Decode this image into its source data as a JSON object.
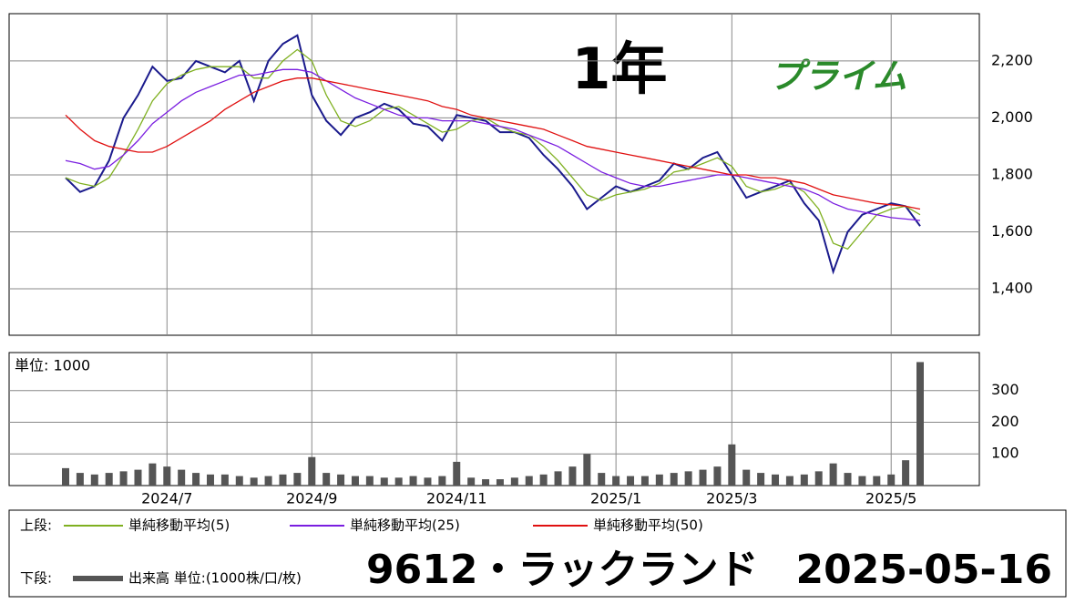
{
  "chart_data": [
    {
      "type": "line",
      "title": "9612・ラックランド",
      "date": "2025-05-16",
      "period_label": "1年",
      "market_label": "プライム",
      "legend_prefix": "上段:",
      "categories": [
        null,
        null,
        null,
        null,
        null,
        null,
        null,
        null,
        null,
        null,
        null,
        null,
        null,
        null,
        null,
        null,
        null,
        null,
        null,
        null,
        null,
        null,
        null,
        null,
        null,
        null,
        null,
        null,
        null,
        null,
        null,
        null,
        null,
        null,
        null,
        null,
        null,
        null,
        null,
        null,
        null,
        null,
        null,
        null,
        null,
        null,
        null,
        null,
        null,
        null,
        null,
        null,
        null,
        null,
        null,
        null,
        null,
        null,
        null,
        null
      ],
      "series": [
        {
          "color": "#1a1a8c",
          "values": [
            1790,
            1740,
            1760,
            1850,
            2000,
            2080,
            2180,
            2130,
            2140,
            2200,
            2180,
            2160,
            2200,
            2060,
            2200,
            2260,
            2290,
            2080,
            1990,
            1940,
            2000,
            2020,
            2050,
            2030,
            1980,
            1970,
            1920,
            2010,
            2000,
            1990,
            1950,
            1950,
            1930,
            1870,
            1820,
            1760,
            1680,
            1720,
            1760,
            1740,
            1760,
            1780,
            1840,
            1820,
            1860,
            1880,
            1800,
            1720,
            1740,
            1760,
            1780,
            1700,
            1640,
            1460,
            1600,
            1660,
            1680,
            1700,
            1690,
            1620
          ]
        },
        {
          "name": "単純移動平均(5)",
          "color": "#7fb020",
          "values": [
            1790,
            1770,
            1760,
            1790,
            1870,
            1960,
            2060,
            2120,
            2150,
            2170,
            2180,
            2180,
            2180,
            2140,
            2140,
            2200,
            2240,
            2200,
            2080,
            1990,
            1970,
            1990,
            2030,
            2040,
            2010,
            1980,
            1950,
            1960,
            1990,
            2000,
            1970,
            1950,
            1940,
            1900,
            1850,
            1790,
            1730,
            1710,
            1730,
            1740,
            1750,
            1770,
            1810,
            1820,
            1840,
            1860,
            1830,
            1760,
            1740,
            1750,
            1770,
            1740,
            1680,
            1560,
            1540,
            1600,
            1660,
            1680,
            1690,
            1660
          ]
        },
        {
          "name": "単純移動平均(25)",
          "color": "#7a1ee0",
          "values": [
            1850,
            1840,
            1820,
            1830,
            1870,
            1920,
            1980,
            2020,
            2060,
            2090,
            2110,
            2130,
            2150,
            2150,
            2160,
            2170,
            2170,
            2160,
            2130,
            2100,
            2070,
            2050,
            2030,
            2010,
            2000,
            2000,
            1990,
            1990,
            1990,
            1980,
            1970,
            1960,
            1940,
            1920,
            1900,
            1870,
            1840,
            1810,
            1790,
            1770,
            1760,
            1760,
            1770,
            1780,
            1790,
            1800,
            1800,
            1790,
            1780,
            1770,
            1760,
            1750,
            1730,
            1700,
            1680,
            1670,
            1660,
            1650,
            1645,
            1640
          ]
        },
        {
          "name": "単純移動平均(50)",
          "color": "#e01010",
          "values": [
            2010,
            1960,
            1920,
            1900,
            1890,
            1880,
            1880,
            1900,
            1930,
            1960,
            1990,
            2030,
            2060,
            2090,
            2110,
            2130,
            2140,
            2140,
            2130,
            2120,
            2110,
            2100,
            2090,
            2080,
            2070,
            2060,
            2040,
            2030,
            2010,
            2000,
            1990,
            1980,
            1970,
            1960,
            1940,
            1920,
            1900,
            1890,
            1880,
            1870,
            1860,
            1850,
            1840,
            1830,
            1820,
            1810,
            1800,
            1800,
            1790,
            1790,
            1780,
            1770,
            1750,
            1730,
            1720,
            1710,
            1700,
            1695,
            1690,
            1680
          ]
        }
      ],
      "ylim": [
        1237,
        2366
      ],
      "yticks": [
        {
          "value": 1400,
          "label": "1,400"
        },
        {
          "value": 1600,
          "label": "1,600"
        },
        {
          "value": 1800,
          "label": "1,800"
        },
        {
          "value": 2000,
          "label": "2,000"
        },
        {
          "value": 2200,
          "label": "2,200"
        }
      ],
      "grid": true
    },
    {
      "type": "bar",
      "unit_label": "単位: 1000",
      "legend_prefix": "下段:",
      "categories": [
        null,
        null,
        null,
        null,
        null,
        null,
        null,
        "2024/7",
        null,
        null,
        null,
        null,
        null,
        null,
        null,
        null,
        null,
        "2024/9",
        null,
        null,
        null,
        null,
        null,
        null,
        null,
        null,
        null,
        "2024/11",
        null,
        null,
        null,
        null,
        null,
        null,
        null,
        null,
        null,
        null,
        "2025/1",
        null,
        null,
        null,
        null,
        null,
        null,
        null,
        "2025/3",
        null,
        null,
        null,
        null,
        null,
        null,
        null,
        null,
        null,
        null,
        "2025/5",
        null,
        null
      ],
      "series": [
        {
          "name": "出来高 単位:(1000株/口/枚)",
          "color": "#555555",
          "values": [
            55,
            40,
            35,
            40,
            45,
            50,
            70,
            60,
            50,
            40,
            35,
            35,
            30,
            25,
            30,
            35,
            40,
            90,
            40,
            35,
            30,
            30,
            25,
            25,
            30,
            25,
            30,
            75,
            25,
            20,
            20,
            25,
            30,
            35,
            45,
            60,
            100,
            40,
            30,
            30,
            30,
            35,
            40,
            45,
            50,
            60,
            130,
            50,
            40,
            35,
            30,
            35,
            45,
            70,
            40,
            30,
            30,
            35,
            80,
            390
          ]
        }
      ],
      "ylim": [
        0,
        420
      ],
      "yticks": [
        100,
        200,
        300
      ],
      "grid": true
    }
  ]
}
